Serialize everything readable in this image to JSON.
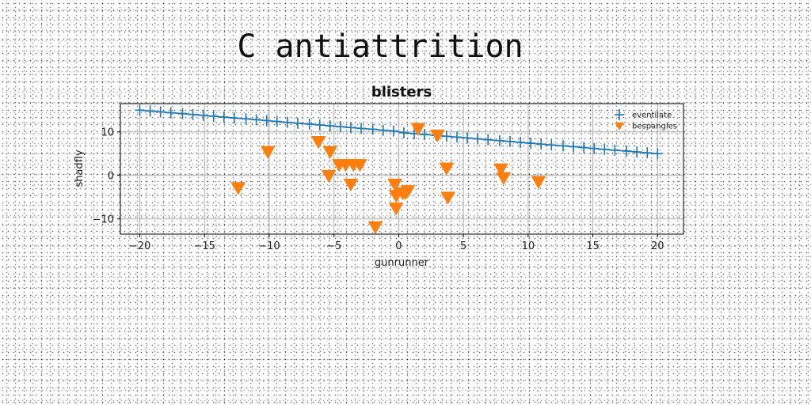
{
  "page": {
    "title": "C antiattrition"
  },
  "chart_data": {
    "type": "scatter",
    "title": "blisters",
    "xlabel": "gunrunner",
    "ylabel": "shadfly",
    "xlim": [
      -21.5,
      22
    ],
    "ylim": [
      -13.5,
      16.5
    ],
    "xticks": [
      -20,
      -15,
      -10,
      -5,
      0,
      5,
      10,
      15,
      20
    ],
    "yticks": [
      -10,
      0,
      10
    ],
    "grid": true,
    "legend_position": "top-right",
    "colors": {
      "eventilate": "#1f77b4",
      "bespangles": "#ff7f0e"
    },
    "series": [
      {
        "name": "eventilate",
        "marker": "plus",
        "line": true,
        "x": [
          -20.0,
          -19.2,
          -18.4,
          -17.6,
          -16.7,
          -15.9,
          -15.1,
          -14.3,
          -13.5,
          -12.7,
          -11.8,
          -11.0,
          -10.2,
          -9.4,
          -8.6,
          -7.8,
          -6.9,
          -6.1,
          -5.3,
          -4.5,
          -3.7,
          -2.9,
          -2.0,
          -1.2,
          -0.4,
          0.4,
          1.2,
          2.0,
          2.9,
          3.7,
          4.5,
          5.3,
          6.1,
          6.9,
          7.8,
          8.6,
          9.4,
          10.2,
          11.0,
          11.8,
          12.7,
          13.5,
          14.3,
          15.1,
          15.9,
          16.7,
          17.6,
          18.4,
          19.2,
          20.0
        ],
        "y": [
          15.0,
          14.8,
          14.6,
          14.4,
          14.2,
          14.0,
          13.8,
          13.6,
          13.4,
          13.2,
          13.0,
          12.8,
          12.6,
          12.4,
          12.2,
          12.0,
          11.8,
          11.6,
          11.4,
          11.2,
          11.0,
          10.8,
          10.6,
          10.4,
          10.2,
          9.8,
          9.6,
          9.4,
          9.2,
          9.0,
          8.8,
          8.6,
          8.4,
          8.2,
          8.0,
          7.8,
          7.6,
          7.4,
          7.2,
          7.0,
          6.8,
          6.6,
          6.4,
          6.2,
          6.0,
          5.8,
          5.6,
          5.4,
          5.2,
          5.0
        ]
      },
      {
        "name": "bespangles",
        "marker": "triangle-down",
        "line": false,
        "x": [
          -12.4,
          -10.1,
          -6.2,
          -5.3,
          -5.4,
          -4.6,
          -4.1,
          -3.7,
          -3.5,
          -3.0,
          -1.8,
          -0.3,
          -0.2,
          -0.2,
          0.3,
          0.5,
          0.7,
          1.5,
          3.0,
          3.7,
          3.8,
          7.9,
          8.1,
          10.8
        ],
        "y": [
          -2.8,
          5.5,
          7.8,
          5.5,
          0.0,
          2.5,
          2.5,
          -2.0,
          2.5,
          2.5,
          -11.8,
          -2.0,
          -4.6,
          -7.5,
          -4.0,
          -4.0,
          -3.5,
          10.8,
          9.3,
          1.7,
          -5.0,
          1.5,
          -0.5,
          -1.4
        ]
      }
    ]
  }
}
